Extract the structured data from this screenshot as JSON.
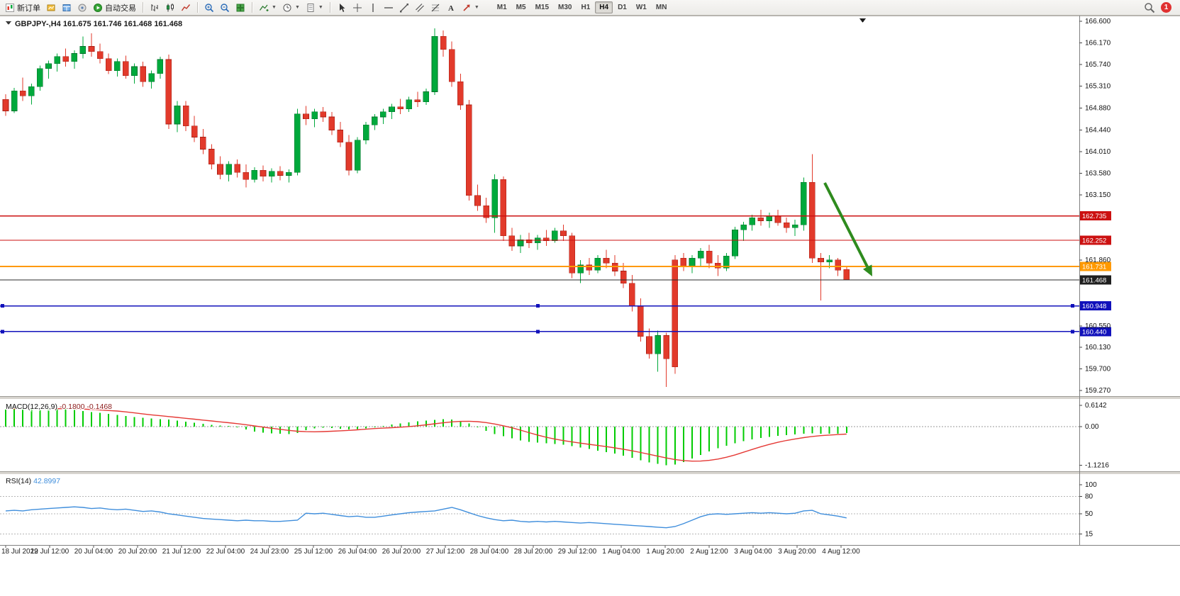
{
  "toolbar": {
    "new_order_label": "新订单",
    "auto_trading_label": "自动交易",
    "timeframes": [
      "M1",
      "M5",
      "M15",
      "M30",
      "H1",
      "H4",
      "D1",
      "W1",
      "MN"
    ],
    "active_timeframe": "H4",
    "notification_count": "1",
    "icon_names": [
      "new-order-icon",
      "charts-icon",
      "profiles-icon",
      "experts-icon",
      "auto-trading-icon",
      "bar-chart-icon",
      "candlestick-chart-icon",
      "line-chart-icon",
      "zoom-in-icon",
      "zoom-out-icon",
      "tile-windows-icon",
      "indicators-icon",
      "periods-icon",
      "templates-icon",
      "cursor-icon",
      "crosshair-icon",
      "vertical-line-icon",
      "horizontal-line-icon",
      "trendline-icon",
      "channel-icon",
      "fibonacci-icon",
      "text-label-icon",
      "arrows-icon",
      "search-icon",
      "notifications-badge"
    ]
  },
  "chart": {
    "header": "GBPJPY-,H4 161.675 161.746 161.468 161.468",
    "price_axis_labels": [
      "166.600",
      "166.170",
      "165.740",
      "165.310",
      "164.880",
      "164.440",
      "164.010",
      "163.580",
      "163.150",
      "161.860",
      "160.550",
      "160.130",
      "159.700",
      "159.270"
    ],
    "hlines": [
      {
        "value": 162.735,
        "label": "162.735",
        "color": "#cc1111",
        "handles": false
      },
      {
        "value": 162.252,
        "label": "162.252",
        "color": "#cc1111",
        "handles": false
      },
      {
        "value": 161.731,
        "label": "161.731",
        "color": "#ff9900",
        "handles": false
      },
      {
        "value": 160.948,
        "label": "160.948",
        "color": "#1111bb",
        "handles": true
      },
      {
        "value": 160.44,
        "label": "160.440",
        "color": "#1111bb",
        "handles": true
      }
    ],
    "current_price": {
      "value": 161.468,
      "label": "161.468",
      "color": "#2b2b2b"
    },
    "time_axis_labels": [
      "18 Jul 2022",
      "19 Jul 12:00",
      "20 Jul 04:00",
      "20 Jul 20:00",
      "21 Jul 12:00",
      "22 Jul 04:00",
      "24 Jul 23:00",
      "25 Jul 12:00",
      "26 Jul 04:00",
      "26 Jul 20:00",
      "27 Jul 12:00",
      "28 Jul 04:00",
      "28 Jul 20:00",
      "29 Jul 12:00",
      "1 Aug 04:00",
      "1 Aug 20:00",
      "2 Aug 12:00",
      "3 Aug 04:00",
      "3 Aug 20:00",
      "4 Aug 12:00"
    ]
  },
  "chart_data": {
    "type": "candlestick",
    "symbol": "GBPJPY-",
    "timeframe": "H4",
    "open": 161.675,
    "high": 161.746,
    "low": 161.468,
    "close": 161.468,
    "price_axis_range": [
      159.27,
      166.6
    ],
    "candles_ohlc": [
      [
        165.05,
        165.15,
        164.72,
        164.82
      ],
      [
        164.82,
        165.28,
        164.78,
        165.22
      ],
      [
        165.22,
        165.48,
        165.02,
        165.12
      ],
      [
        165.12,
        165.36,
        164.95,
        165.3
      ],
      [
        165.3,
        165.72,
        165.22,
        165.66
      ],
      [
        165.66,
        165.82,
        165.46,
        165.76
      ],
      [
        165.76,
        165.96,
        165.6,
        165.9
      ],
      [
        165.9,
        166.06,
        165.7,
        165.8
      ],
      [
        165.8,
        166.02,
        165.66,
        165.96
      ],
      [
        165.96,
        166.3,
        165.86,
        166.1
      ],
      [
        166.1,
        166.36,
        165.9,
        166.0
      ],
      [
        166.0,
        166.16,
        165.76,
        165.86
      ],
      [
        165.86,
        165.96,
        165.55,
        165.62
      ],
      [
        165.62,
        165.86,
        165.5,
        165.8
      ],
      [
        165.8,
        165.92,
        165.46,
        165.52
      ],
      [
        165.52,
        165.76,
        165.36,
        165.7
      ],
      [
        165.7,
        165.8,
        165.3,
        165.4
      ],
      [
        165.4,
        165.62,
        165.26,
        165.56
      ],
      [
        165.56,
        165.9,
        165.46,
        165.84
      ],
      [
        165.84,
        165.94,
        164.46,
        164.56
      ],
      [
        164.56,
        165.02,
        164.4,
        164.92
      ],
      [
        164.92,
        165.02,
        164.42,
        164.52
      ],
      [
        164.52,
        164.72,
        164.2,
        164.3
      ],
      [
        164.3,
        164.46,
        163.96,
        164.06
      ],
      [
        164.06,
        164.16,
        163.66,
        163.76
      ],
      [
        163.76,
        163.92,
        163.46,
        163.56
      ],
      [
        163.56,
        163.82,
        163.42,
        163.76
      ],
      [
        163.76,
        163.86,
        163.5,
        163.6
      ],
      [
        163.6,
        163.76,
        163.3,
        163.46
      ],
      [
        163.46,
        163.7,
        163.4,
        163.64
      ],
      [
        163.64,
        163.74,
        163.42,
        163.52
      ],
      [
        163.52,
        163.68,
        163.4,
        163.62
      ],
      [
        163.62,
        163.72,
        163.44,
        163.54
      ],
      [
        163.54,
        163.66,
        163.4,
        163.6
      ],
      [
        163.6,
        164.86,
        163.54,
        164.76
      ],
      [
        164.76,
        164.92,
        164.54,
        164.66
      ],
      [
        164.66,
        164.86,
        164.5,
        164.8
      ],
      [
        164.8,
        164.9,
        164.6,
        164.7
      ],
      [
        164.7,
        164.8,
        164.34,
        164.44
      ],
      [
        164.44,
        164.6,
        164.1,
        164.2
      ],
      [
        164.2,
        164.34,
        163.54,
        163.64
      ],
      [
        163.64,
        164.3,
        163.58,
        164.24
      ],
      [
        164.24,
        164.6,
        164.16,
        164.54
      ],
      [
        164.54,
        164.76,
        164.44,
        164.7
      ],
      [
        164.7,
        164.86,
        164.56,
        164.8
      ],
      [
        164.8,
        164.96,
        164.66,
        164.9
      ],
      [
        164.9,
        165.06,
        164.76,
        164.86
      ],
      [
        164.86,
        165.1,
        164.8,
        165.04
      ],
      [
        165.04,
        165.2,
        164.9,
        165.0
      ],
      [
        165.0,
        165.26,
        164.94,
        165.2
      ],
      [
        165.2,
        166.46,
        165.14,
        166.3
      ],
      [
        166.3,
        166.42,
        165.9,
        166.04
      ],
      [
        166.04,
        166.2,
        165.3,
        165.4
      ],
      [
        165.4,
        165.56,
        164.84,
        164.94
      ],
      [
        164.94,
        165.04,
        163.04,
        163.14
      ],
      [
        163.14,
        163.36,
        162.84,
        162.94
      ],
      [
        162.94,
        163.1,
        162.6,
        162.7
      ],
      [
        162.7,
        163.56,
        162.4,
        163.46
      ],
      [
        163.46,
        163.52,
        162.24,
        162.34
      ],
      [
        162.34,
        162.5,
        162.04,
        162.14
      ],
      [
        162.14,
        162.36,
        162.0,
        162.26
      ],
      [
        162.26,
        162.4,
        162.1,
        162.2
      ],
      [
        162.2,
        162.36,
        162.06,
        162.3
      ],
      [
        162.3,
        162.46,
        162.14,
        162.24
      ],
      [
        162.24,
        162.5,
        162.2,
        162.44
      ],
      [
        162.44,
        162.56,
        162.24,
        162.34
      ],
      [
        162.34,
        162.4,
        161.5,
        161.6
      ],
      [
        161.6,
        161.86,
        161.4,
        161.76
      ],
      [
        161.76,
        161.9,
        161.56,
        161.66
      ],
      [
        161.66,
        161.96,
        161.6,
        161.9
      ],
      [
        161.9,
        162.06,
        161.7,
        161.8
      ],
      [
        161.8,
        161.96,
        161.54,
        161.64
      ],
      [
        161.64,
        161.8,
        161.3,
        161.4
      ],
      [
        161.4,
        161.56,
        160.84,
        160.94
      ],
      [
        160.94,
        161.1,
        160.24,
        160.34
      ],
      [
        160.34,
        160.5,
        159.9,
        160.0
      ],
      [
        160.0,
        160.46,
        159.64,
        160.36
      ],
      [
        160.36,
        160.42,
        159.34,
        159.9
      ],
      [
        161.86,
        161.96,
        159.6,
        159.74
      ],
      [
        161.9,
        162.0,
        161.64,
        161.74
      ],
      [
        161.74,
        161.96,
        161.6,
        161.9
      ],
      [
        161.9,
        162.1,
        161.74,
        162.04
      ],
      [
        162.04,
        162.16,
        161.7,
        161.8
      ],
      [
        161.8,
        161.96,
        161.54,
        161.7
      ],
      [
        161.7,
        162.0,
        161.64,
        161.94
      ],
      [
        161.94,
        162.52,
        161.88,
        162.46
      ],
      [
        162.46,
        162.62,
        162.24,
        162.56
      ],
      [
        162.56,
        162.76,
        162.44,
        162.7
      ],
      [
        162.7,
        162.86,
        162.54,
        162.64
      ],
      [
        162.64,
        162.8,
        162.5,
        162.74
      ],
      [
        162.74,
        162.86,
        162.54,
        162.6
      ],
      [
        162.6,
        162.7,
        162.4,
        162.5
      ],
      [
        162.5,
        162.66,
        162.34,
        162.56
      ],
      [
        162.56,
        163.5,
        162.44,
        163.4
      ],
      [
        163.4,
        163.96,
        161.8,
        161.9
      ],
      [
        161.9,
        162.0,
        161.06,
        161.82
      ],
      [
        161.82,
        161.96,
        161.7,
        161.86
      ],
      [
        161.86,
        161.9,
        161.54,
        161.66
      ],
      [
        161.675,
        161.746,
        161.468,
        161.468
      ]
    ],
    "macd": {
      "label": "MACD(12,26,9)",
      "value_main": "-0.1800",
      "value_signal": "-0.1468",
      "axis_labels": [
        "0.6142",
        "0.00",
        "-1.1216"
      ],
      "axis_values": [
        0.6142,
        0,
        -1.1216
      ],
      "histogram": [
        0.5,
        0.53,
        0.55,
        0.5,
        0.48,
        0.52,
        0.55,
        0.52,
        0.48,
        0.45,
        0.42,
        0.4,
        0.37,
        0.34,
        0.31,
        0.28,
        0.26,
        0.24,
        0.22,
        0.2,
        0.17,
        0.14,
        0.11,
        0.08,
        0.05,
        0.03,
        0.02,
        -0.02,
        -0.08,
        -0.14,
        -0.17,
        -0.19,
        -0.21,
        -0.22,
        -0.18,
        -0.1,
        -0.05,
        -0.03,
        -0.04,
        -0.06,
        -0.08,
        -0.07,
        -0.05,
        -0.02,
        0.02,
        0.06,
        0.09,
        0.12,
        0.15,
        0.17,
        0.19,
        0.22,
        0.21,
        0.16,
        0.09,
        -0.02,
        -0.12,
        -0.22,
        -0.28,
        -0.34,
        -0.4,
        -0.44,
        -0.46,
        -0.48,
        -0.5,
        -0.52,
        -0.56,
        -0.6,
        -0.65,
        -0.7,
        -0.74,
        -0.78,
        -0.84,
        -0.9,
        -0.97,
        -1.03,
        -1.08,
        -1.12,
        -1.1,
        -1.02,
        -0.92,
        -0.82,
        -0.72,
        -0.63,
        -0.55,
        -0.48,
        -0.42,
        -0.37,
        -0.33,
        -0.3,
        -0.27,
        -0.25,
        -0.23,
        -0.21,
        -0.19,
        -0.2,
        -0.21,
        -0.2,
        -0.18
      ]
    },
    "rsi": {
      "label": "RSI(14)",
      "value": "42.8997",
      "axis_labels": [
        "100",
        "80",
        "50",
        "15"
      ],
      "axis_values": [
        100,
        80,
        50,
        15
      ],
      "values": [
        55,
        56,
        55,
        57,
        58,
        59,
        60,
        61,
        62,
        61,
        59,
        60,
        58,
        57,
        58,
        56,
        54,
        55,
        53,
        50,
        48,
        46,
        44,
        42,
        41,
        40,
        39,
        38,
        39,
        38,
        38,
        37,
        37,
        38,
        39,
        51,
        50,
        51,
        49,
        47,
        45,
        46,
        44,
        44,
        46,
        48,
        50,
        52,
        53,
        54,
        55,
        58,
        61,
        57,
        52,
        47,
        43,
        40,
        38,
        39,
        37,
        36,
        37,
        36,
        37,
        36,
        35,
        34,
        35,
        34,
        33,
        32,
        31,
        30,
        29,
        28,
        27,
        26,
        28,
        33,
        39,
        45,
        49,
        50,
        49,
        50,
        51,
        52,
        51,
        52,
        51,
        50,
        51,
        55,
        56,
        50,
        48,
        46,
        42.9
      ]
    }
  },
  "colors": {
    "bull": "#00a93c",
    "bear": "#e23a2b",
    "macd_hist": "#00cc00",
    "macd_signal": "#e53935",
    "rsi_line": "#3f8edc",
    "arrow": "#2e8b1e",
    "line_red": "#cc1111",
    "line_orange": "#ff9900",
    "line_blue": "#1111bb"
  }
}
